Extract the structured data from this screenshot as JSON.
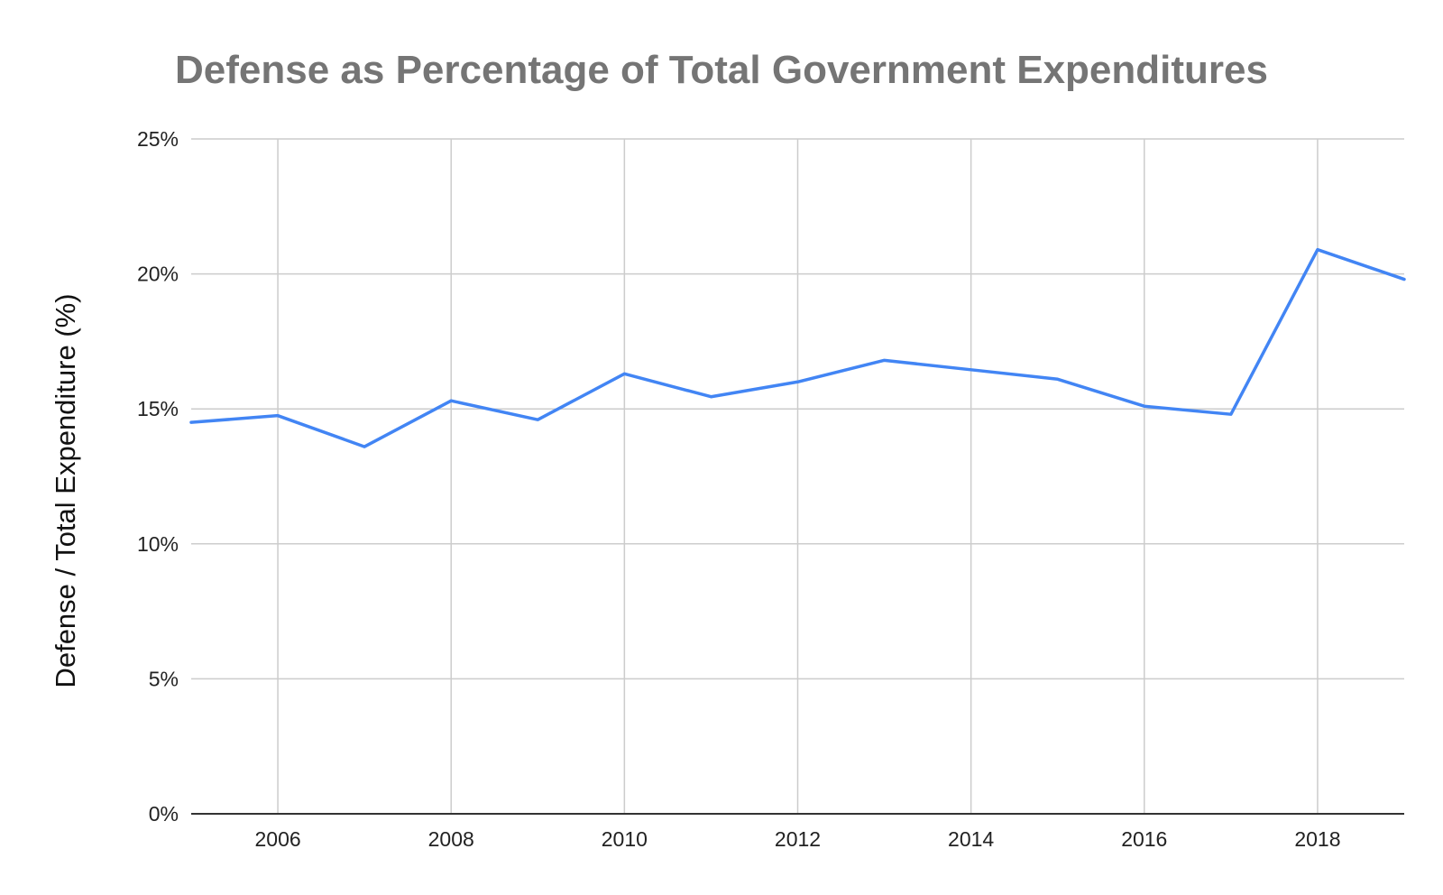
{
  "chart_data": {
    "type": "line",
    "title": "Defense as Percentage of Total Government Expenditures",
    "xlabel": "",
    "ylabel": "Defense / Total Expenditure (%)",
    "x": [
      2005,
      2006,
      2007,
      2008,
      2009,
      2010,
      2011,
      2012,
      2013,
      2014,
      2015,
      2016,
      2017,
      2018,
      2019
    ],
    "series": [
      {
        "values": [
          14.5,
          14.75,
          13.6,
          15.3,
          14.6,
          16.3,
          15.45,
          16.0,
          16.8,
          16.45,
          16.1,
          15.1,
          14.8,
          20.9,
          19.8
        ]
      }
    ],
    "xlim": [
      2005,
      2019
    ],
    "ylim": [
      0,
      25
    ],
    "x_ticks": [
      2006,
      2008,
      2010,
      2012,
      2014,
      2016,
      2018
    ],
    "x_tick_labels": [
      "2006",
      "2008",
      "2010",
      "2012",
      "2014",
      "2016",
      "2018"
    ],
    "y_ticks": [
      0,
      5,
      10,
      15,
      20,
      25
    ],
    "y_tick_labels": [
      "0%",
      "5%",
      "10%",
      "15%",
      "20%",
      "25%"
    ],
    "grid": true,
    "legend": "none",
    "colors": {
      "series": "#4285f4",
      "title": "#757575",
      "grid": "#cccccc",
      "axis": "#333333"
    }
  }
}
